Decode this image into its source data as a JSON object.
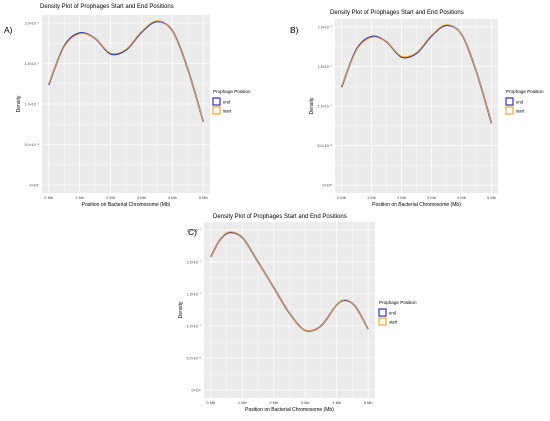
{
  "panel_labels": [
    "A)",
    "B)",
    "C)"
  ],
  "colors": {
    "end": "#2E2EC8",
    "start": "#F5A623",
    "panel_bg": "#EBEBEB",
    "grid": "#FFFFFF"
  },
  "legend": {
    "title": "Prophage Position",
    "entries": [
      "end",
      "start"
    ]
  },
  "chart_data": [
    {
      "type": "line",
      "title": "Density Plot of Prophages Start and End Positions",
      "xlabel": "Position on Bacterial Chromosome (Mb)",
      "ylabel": "Density",
      "xlim": [
        0,
        5
      ],
      "ylim": [
        0,
        2.1e-07
      ],
      "x_ticks": [
        "0 Mb",
        "1 Mb",
        "2 Mb",
        "3 Mb",
        "4 Mb",
        "5 Mb"
      ],
      "y_ticks": [
        "0×10⁰",
        "5.0×10⁻⁸",
        "1.0×10⁻⁷",
        "1.5×10⁻⁷",
        "2.0×10⁻⁷"
      ],
      "grid": true,
      "legend_position": "right",
      "series": [
        {
          "name": "end",
          "x": [
            0,
            0.5,
            1.0,
            1.5,
            2.0,
            2.5,
            3.0,
            3.5,
            4.0,
            4.5,
            5.0
          ],
          "y": [
            1.3e-07,
            1.8e-07,
            1.97e-07,
            1.9e-07,
            1.7e-07,
            1.75e-07,
            1.98e-07,
            2.12e-07,
            2e-07,
            1.5e-07,
            8.2e-08
          ]
        },
        {
          "name": "start",
          "x": [
            0,
            0.5,
            1.0,
            1.5,
            2.0,
            2.5,
            3.0,
            3.5,
            4.0,
            4.5,
            5.0
          ],
          "y": [
            1.31e-07,
            1.79e-07,
            1.96e-07,
            1.9e-07,
            1.71e-07,
            1.76e-07,
            1.99e-07,
            2.13e-07,
            2e-07,
            1.5e-07,
            8.2e-08
          ]
        }
      ]
    },
    {
      "type": "line",
      "title": "Density Plot of Prophages Start and End Positions",
      "xlabel": "Position on Bacterial Chromosome (Mb)",
      "ylabel": "Density",
      "xlim": [
        0,
        5
      ],
      "ylim": [
        0,
        2.1e-07
      ],
      "x_ticks": [
        "0 Mb",
        "1 Mb",
        "2 Mb",
        "3 Mb",
        "4 Mb",
        "5 Mb"
      ],
      "y_ticks": [
        "0×10⁰",
        "5.0×10⁻⁸",
        "1.0×10⁻⁷",
        "1.5×10⁻⁷",
        "2.0×10⁻⁷"
      ],
      "grid": true,
      "legend_position": "right",
      "series": [
        {
          "name": "end",
          "x": [
            0,
            0.5,
            1.0,
            1.5,
            2.0,
            2.5,
            3.0,
            3.5,
            4.0,
            4.5,
            5.0
          ],
          "y": [
            1.3e-07,
            1.8e-07,
            1.97e-07,
            1.9e-07,
            1.7e-07,
            1.75e-07,
            1.98e-07,
            2.12e-07,
            2e-07,
            1.5e-07,
            8.2e-08
          ]
        },
        {
          "name": "start",
          "x": [
            0,
            0.5,
            1.0,
            1.5,
            2.0,
            2.5,
            3.0,
            3.5,
            4.0,
            4.5,
            5.0
          ],
          "y": [
            1.31e-07,
            1.79e-07,
            1.96e-07,
            1.9e-07,
            1.71e-07,
            1.76e-07,
            1.99e-07,
            2.13e-07,
            2e-07,
            1.5e-07,
            8.2e-08
          ]
        }
      ]
    },
    {
      "type": "line",
      "title": "Density Plot of Prophages Start and End Positions",
      "xlabel": "Position on Bacterial Chromosome (Mb)",
      "ylabel": "Density",
      "xlim": [
        0,
        5
      ],
      "ylim": [
        0,
        2.5e-07
      ],
      "x_ticks": [
        "0 Mb",
        "1 Mb",
        "2 Mb",
        "3 Mb",
        "4 Mb",
        "5 Mb"
      ],
      "y_ticks": [
        "0×10⁰",
        "5.0×10⁻⁸",
        "1.0×10⁻⁷",
        "1.5×10⁻⁷",
        "2.0×10⁻⁷",
        "2.5×10⁻⁷"
      ],
      "grid": true,
      "legend_position": "right",
      "series": [
        {
          "name": "end",
          "x": [
            0,
            0.3,
            0.6,
            1.0,
            1.5,
            2.0,
            2.5,
            3.0,
            3.5,
            4.0,
            4.3,
            4.6,
            5.0
          ],
          "y": [
            2.08e-07,
            2.35e-07,
            2.46e-07,
            2.38e-07,
            2e-07,
            1.6e-07,
            1.2e-07,
            9.3e-08,
            1e-07,
            1.33e-07,
            1.4e-07,
            1.3e-07,
            9.5e-08
          ]
        },
        {
          "name": "start",
          "x": [
            0,
            0.3,
            0.6,
            1.0,
            1.5,
            2.0,
            2.5,
            3.0,
            3.5,
            4.0,
            4.3,
            4.6,
            5.0
          ],
          "y": [
            2.08e-07,
            2.35e-07,
            2.47e-07,
            2.38e-07,
            2e-07,
            1.6e-07,
            1.2e-07,
            9.3e-08,
            1e-07,
            1.33e-07,
            1.41e-07,
            1.3e-07,
            9.5e-08
          ]
        }
      ]
    }
  ]
}
